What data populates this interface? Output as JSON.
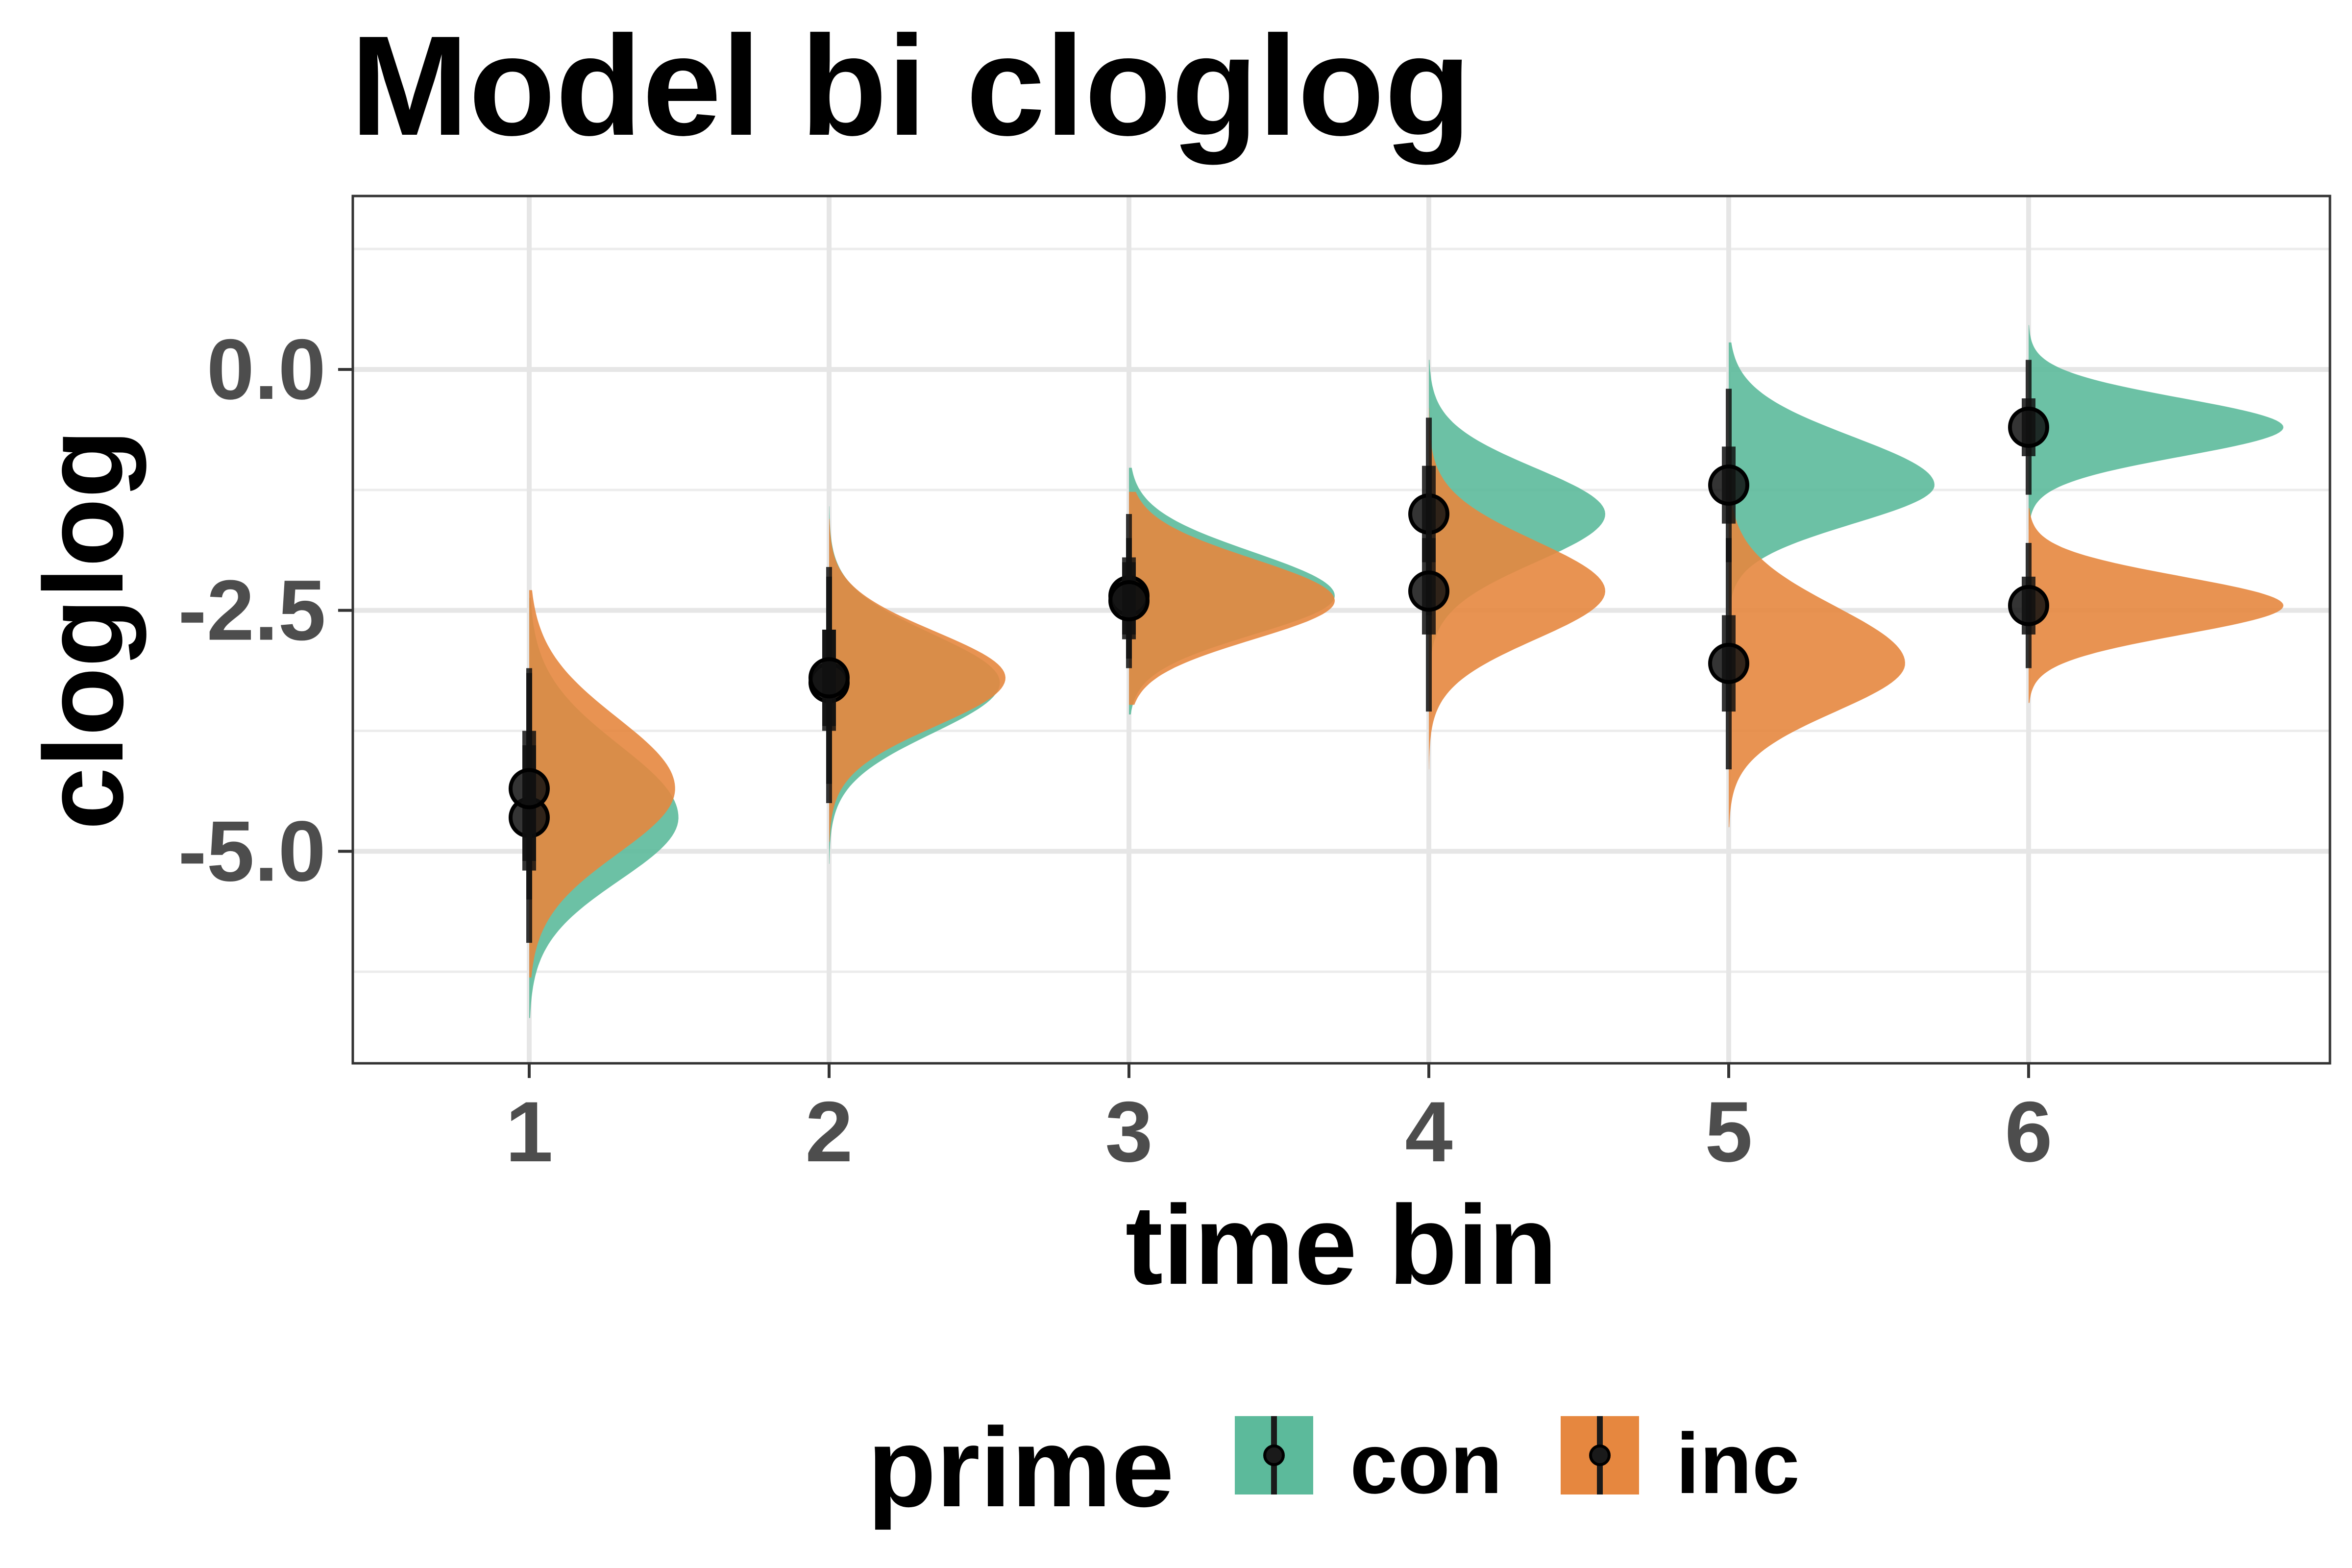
{
  "title": "Model bi cloglog",
  "chart_data": {
    "type": "halfeye",
    "title": "Model bi cloglog",
    "xlabel": "time bin",
    "ylabel": "cloglog",
    "categories": [
      "1",
      "2",
      "3",
      "4",
      "5",
      "6"
    ],
    "y_ticks": [
      "0.0",
      "-2.5",
      "-5.0"
    ],
    "ylim": [
      -7.2,
      1.8
    ],
    "grid": true,
    "legend": {
      "title": "prime",
      "position": "bottom",
      "entries": [
        "con",
        "inc"
      ]
    },
    "colors": {
      "con": "#5CBA9B",
      "inc": "#E6873F",
      "point": "#000000"
    },
    "series": [
      {
        "name": "con",
        "color": "#5CBA9B",
        "median": [
          -4.65,
          -3.25,
          -2.35,
          -1.5,
          -1.2,
          -0.6
        ],
        "interval_66": [
          [
            -5.2,
            -3.9
          ],
          [
            -3.75,
            -2.7
          ],
          [
            -2.75,
            -1.95
          ],
          [
            -2.0,
            -1.0
          ],
          [
            -1.6,
            -0.8
          ],
          [
            -0.9,
            -0.3
          ]
        ],
        "interval_95": [
          [
            -5.95,
            -3.15
          ],
          [
            -4.5,
            -2.05
          ],
          [
            -3.1,
            -1.5
          ],
          [
            -2.55,
            -0.5
          ],
          [
            -2.0,
            -0.2
          ],
          [
            -1.3,
            0.1
          ]
        ]
      },
      {
        "name": "inc",
        "color": "#E6873F",
        "median": [
          -4.35,
          -3.2,
          -2.4,
          -2.3,
          -3.05,
          -2.45
        ],
        "interval_66": [
          [
            -5.1,
            -3.75
          ],
          [
            -3.7,
            -2.7
          ],
          [
            -2.8,
            -2.0
          ],
          [
            -2.75,
            -1.75
          ],
          [
            -3.55,
            -2.55
          ],
          [
            -2.75,
            -2.15
          ]
        ],
        "interval_95": [
          [
            -5.5,
            -3.1
          ],
          [
            -4.3,
            -2.15
          ],
          [
            -3.0,
            -1.75
          ],
          [
            -3.55,
            -1.0
          ],
          [
            -4.15,
            -1.75
          ],
          [
            -3.1,
            -1.8
          ]
        ]
      }
    ]
  }
}
